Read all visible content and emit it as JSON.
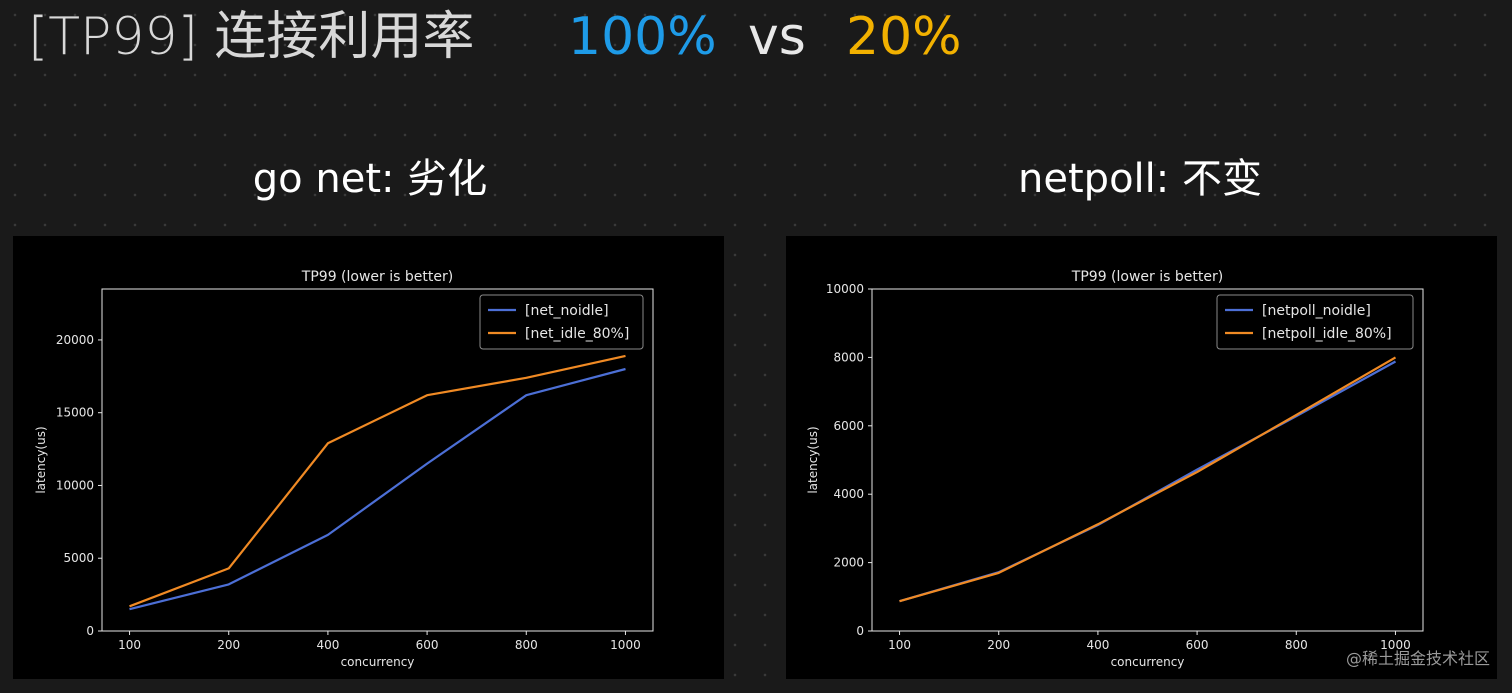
{
  "header": {
    "title_main": "[TP99] 连接利用率",
    "title_a": "100%",
    "title_vs": "vs",
    "title_b": "20%",
    "color_a": "#1e9be8",
    "color_b": "#f2b100"
  },
  "subtitles": {
    "left": "go net: 劣化",
    "right": "netpoll: 不变"
  },
  "watermark": "@稀土掘金技术社区",
  "chart_data": [
    {
      "type": "line",
      "title": "TP99 (lower is better)",
      "xlabel": "concurrency",
      "ylabel": "latency(us)",
      "x": [
        100,
        200,
        400,
        600,
        800,
        1000
      ],
      "xticks": [
        100,
        200,
        400,
        600,
        800,
        1000
      ],
      "yticks": [
        0,
        5000,
        10000,
        15000,
        20000
      ],
      "ylim": [
        0,
        23500
      ],
      "x_scale": "categorical",
      "legend": "top-right",
      "grid": false,
      "series": [
        {
          "name": "[net_noidle]",
          "color": "#4c6fd6",
          "values": [
            1500,
            3200,
            6600,
            11500,
            16200,
            18000
          ]
        },
        {
          "name": "[net_idle_80%]",
          "color": "#f08a24",
          "values": [
            1700,
            4300,
            12900,
            16200,
            17400,
            18900
          ]
        }
      ]
    },
    {
      "type": "line",
      "title": "TP99 (lower is better)",
      "xlabel": "concurrency",
      "ylabel": "latency(us)",
      "x": [
        100,
        200,
        400,
        600,
        800,
        1000
      ],
      "xticks": [
        100,
        200,
        400,
        600,
        800,
        1000
      ],
      "yticks": [
        0,
        2000,
        4000,
        6000,
        8000,
        10000
      ],
      "ylim": [
        0,
        10000
      ],
      "x_scale": "categorical",
      "legend": "top-right",
      "grid": false,
      "series": [
        {
          "name": "[netpoll_noidle]",
          "color": "#4c6fd6",
          "values": [
            870,
            1720,
            3100,
            4720,
            6280,
            7880
          ]
        },
        {
          "name": "[netpoll_idle_80%]",
          "color": "#f08a24",
          "values": [
            870,
            1700,
            3120,
            4650,
            6320,
            8000
          ]
        }
      ]
    }
  ]
}
